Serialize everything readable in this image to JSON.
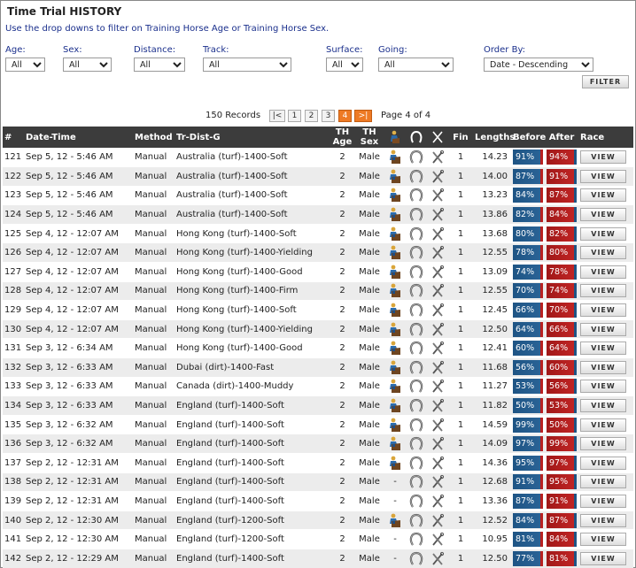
{
  "title": "Time Trial HISTORY",
  "subtitle": "Use the drop downs to filter on Training Horse Age or Training Horse Sex.",
  "filters": [
    {
      "label": "Age:",
      "value": "All"
    },
    {
      "label": "Sex:",
      "value": "All"
    },
    {
      "label": "Distance:",
      "value": "All"
    },
    {
      "label": "Track:",
      "value": "All"
    },
    {
      "label": "Surface:",
      "value": "All"
    },
    {
      "label": "Going:",
      "value": "All"
    },
    {
      "label": "Order By:",
      "value": "Date - Descending"
    }
  ],
  "filter_button": "FILTER",
  "pager": {
    "records": "150 Records",
    "first": "|<",
    "pages": [
      "1",
      "2",
      "3",
      "4"
    ],
    "current": "4",
    "last": ">|",
    "info": "Page 4 of 4"
  },
  "headers": {
    "num": "#",
    "date": "Date-Time",
    "method": "Method",
    "trdist": "Tr-Dist-G",
    "thage": "TH Age",
    "thsex": "TH Sex",
    "fin": "Fin",
    "lengths": "Lengths",
    "before": "Before",
    "after": "After",
    "race": "Race"
  },
  "view_label": "VIEW",
  "rows": [
    {
      "num": "121",
      "date": "Sep 5, 12 - 5:46 AM",
      "method": "Manual",
      "trdist": "Australia (turf)-1400-Soft",
      "age": "2",
      "sex": "Male",
      "jockey": true,
      "fin": "1",
      "lengths": "14.23",
      "before": "91%",
      "after": "94%"
    },
    {
      "num": "122",
      "date": "Sep 5, 12 - 5:46 AM",
      "method": "Manual",
      "trdist": "Australia (turf)-1400-Soft",
      "age": "2",
      "sex": "Male",
      "jockey": true,
      "fin": "1",
      "lengths": "14.00",
      "before": "87%",
      "after": "91%"
    },
    {
      "num": "123",
      "date": "Sep 5, 12 - 5:46 AM",
      "method": "Manual",
      "trdist": "Australia (turf)-1400-Soft",
      "age": "2",
      "sex": "Male",
      "jockey": true,
      "fin": "1",
      "lengths": "13.23",
      "before": "84%",
      "after": "87%"
    },
    {
      "num": "124",
      "date": "Sep 5, 12 - 5:46 AM",
      "method": "Manual",
      "trdist": "Australia (turf)-1400-Soft",
      "age": "2",
      "sex": "Male",
      "jockey": true,
      "fin": "1",
      "lengths": "13.86",
      "before": "82%",
      "after": "84%"
    },
    {
      "num": "125",
      "date": "Sep 4, 12 - 12:07 AM",
      "method": "Manual",
      "trdist": "Hong Kong (turf)-1400-Soft",
      "age": "2",
      "sex": "Male",
      "jockey": true,
      "fin": "1",
      "lengths": "13.68",
      "before": "80%",
      "after": "82%"
    },
    {
      "num": "126",
      "date": "Sep 4, 12 - 12:07 AM",
      "method": "Manual",
      "trdist": "Hong Kong (turf)-1400-Yielding",
      "age": "2",
      "sex": "Male",
      "jockey": true,
      "fin": "1",
      "lengths": "12.55",
      "before": "78%",
      "after": "80%"
    },
    {
      "num": "127",
      "date": "Sep 4, 12 - 12:07 AM",
      "method": "Manual",
      "trdist": "Hong Kong (turf)-1400-Good",
      "age": "2",
      "sex": "Male",
      "jockey": true,
      "fin": "1",
      "lengths": "13.09",
      "before": "74%",
      "after": "78%"
    },
    {
      "num": "128",
      "date": "Sep 4, 12 - 12:07 AM",
      "method": "Manual",
      "trdist": "Hong Kong (turf)-1400-Firm",
      "age": "2",
      "sex": "Male",
      "jockey": true,
      "fin": "1",
      "lengths": "12.55",
      "before": "70%",
      "after": "74%"
    },
    {
      "num": "129",
      "date": "Sep 4, 12 - 12:07 AM",
      "method": "Manual",
      "trdist": "Hong Kong (turf)-1400-Soft",
      "age": "2",
      "sex": "Male",
      "jockey": true,
      "fin": "1",
      "lengths": "12.45",
      "before": "66%",
      "after": "70%"
    },
    {
      "num": "130",
      "date": "Sep 4, 12 - 12:07 AM",
      "method": "Manual",
      "trdist": "Hong Kong (turf)-1400-Yielding",
      "age": "2",
      "sex": "Male",
      "jockey": true,
      "fin": "1",
      "lengths": "12.50",
      "before": "64%",
      "after": "66%"
    },
    {
      "num": "131",
      "date": "Sep 3, 12 - 6:34 AM",
      "method": "Manual",
      "trdist": "Hong Kong (turf)-1400-Good",
      "age": "2",
      "sex": "Male",
      "jockey": true,
      "fin": "1",
      "lengths": "12.41",
      "before": "60%",
      "after": "64%"
    },
    {
      "num": "132",
      "date": "Sep 3, 12 - 6:33 AM",
      "method": "Manual",
      "trdist": "Dubai (dirt)-1400-Fast",
      "age": "2",
      "sex": "Male",
      "jockey": true,
      "fin": "1",
      "lengths": "11.68",
      "before": "56%",
      "after": "60%"
    },
    {
      "num": "133",
      "date": "Sep 3, 12 - 6:33 AM",
      "method": "Manual",
      "trdist": "Canada (dirt)-1400-Muddy",
      "age": "2",
      "sex": "Male",
      "jockey": true,
      "fin": "1",
      "lengths": "11.27",
      "before": "53%",
      "after": "56%"
    },
    {
      "num": "134",
      "date": "Sep 3, 12 - 6:33 AM",
      "method": "Manual",
      "trdist": "England (turf)-1400-Soft",
      "age": "2",
      "sex": "Male",
      "jockey": true,
      "fin": "1",
      "lengths": "11.82",
      "before": "50%",
      "after": "53%"
    },
    {
      "num": "135",
      "date": "Sep 3, 12 - 6:32 AM",
      "method": "Manual",
      "trdist": "England (turf)-1400-Soft",
      "age": "2",
      "sex": "Male",
      "jockey": true,
      "fin": "1",
      "lengths": "14.59",
      "before": "99%",
      "after": "50%"
    },
    {
      "num": "136",
      "date": "Sep 3, 12 - 6:32 AM",
      "method": "Manual",
      "trdist": "England (turf)-1400-Soft",
      "age": "2",
      "sex": "Male",
      "jockey": true,
      "fin": "1",
      "lengths": "14.09",
      "before": "97%",
      "after": "99%"
    },
    {
      "num": "137",
      "date": "Sep 2, 12 - 12:31 AM",
      "method": "Manual",
      "trdist": "England (turf)-1400-Soft",
      "age": "2",
      "sex": "Male",
      "jockey": true,
      "fin": "1",
      "lengths": "14.36",
      "before": "95%",
      "after": "97%"
    },
    {
      "num": "138",
      "date": "Sep 2, 12 - 12:31 AM",
      "method": "Manual",
      "trdist": "England (turf)-1400-Soft",
      "age": "2",
      "sex": "Male",
      "jockey": false,
      "jockey_text": "-",
      "fin": "1",
      "lengths": "12.68",
      "before": "91%",
      "after": "95%"
    },
    {
      "num": "139",
      "date": "Sep 2, 12 - 12:31 AM",
      "method": "Manual",
      "trdist": "England (turf)-1400-Soft",
      "age": "2",
      "sex": "Male",
      "jockey": false,
      "jockey_text": "-",
      "fin": "1",
      "lengths": "13.36",
      "before": "87%",
      "after": "91%"
    },
    {
      "num": "140",
      "date": "Sep 2, 12 - 12:30 AM",
      "method": "Manual",
      "trdist": "England (turf)-1200-Soft",
      "age": "2",
      "sex": "Male",
      "jockey": true,
      "fin": "1",
      "lengths": "12.52",
      "before": "84%",
      "after": "87%"
    },
    {
      "num": "141",
      "date": "Sep 2, 12 - 12:30 AM",
      "method": "Manual",
      "trdist": "England (turf)-1200-Soft",
      "age": "2",
      "sex": "Male",
      "jockey": false,
      "jockey_text": "-",
      "fin": "1",
      "lengths": "10.95",
      "before": "81%",
      "after": "84%"
    },
    {
      "num": "142",
      "date": "Sep 2, 12 - 12:29 AM",
      "method": "Manual",
      "trdist": "England (turf)-1400-Soft",
      "age": "2",
      "sex": "Male",
      "jockey": false,
      "jockey_text": "-",
      "fin": "1",
      "lengths": "12.50",
      "before": "77%",
      "after": "81%"
    }
  ],
  "colors": {
    "before_bar": "#1e5484",
    "after_bar": "#b82020",
    "header_bg": "#3c3c3c",
    "current_page": "#ee7a24",
    "link_text": "#1a2f8c"
  }
}
